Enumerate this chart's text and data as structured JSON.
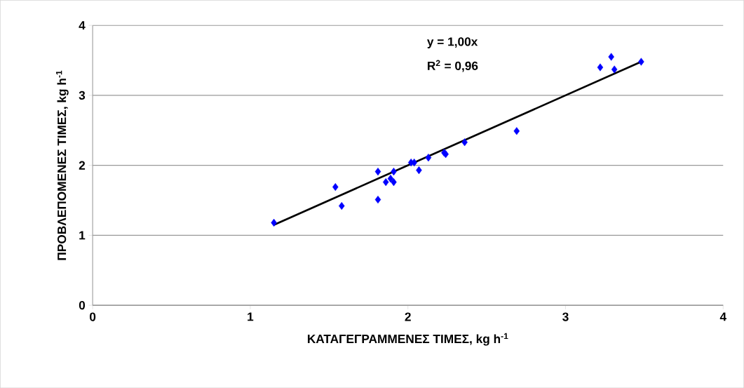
{
  "chart_data": {
    "type": "scatter",
    "xlabel": "ΚΑΤΑΓΕΓΡΑΜΜΕΝΕΣ ΤΙΜΕΣ, kg h$^{-1}$",
    "ylabel": "ΠΡΟΒΛΕΠΟΜΕΝΕΣ ΤΙΜΕΣ, kg h$^{-1}$",
    "annotations": [
      "y = 1,00x",
      "R$^{2}$ = 0,96"
    ],
    "xlim": [
      0,
      4
    ],
    "ylim": [
      0,
      4
    ],
    "xticks": [
      0,
      1,
      2,
      3,
      4
    ],
    "yticks": [
      0,
      1,
      2,
      3,
      4
    ],
    "grid": "y",
    "marker": "diamond",
    "series": [
      {
        "color": "#0000ff",
        "x": [
          1.15,
          1.54,
          1.58,
          1.81,
          1.81,
          1.86,
          1.89,
          1.91,
          1.91,
          2.02,
          2.04,
          2.07,
          2.13,
          2.23,
          2.24,
          2.36,
          2.69,
          3.22,
          3.29,
          3.31,
          3.48
        ],
        "values": [
          1.18,
          1.69,
          1.42,
          1.91,
          1.51,
          1.76,
          1.81,
          1.91,
          1.76,
          2.04,
          2.04,
          1.93,
          2.11,
          2.18,
          2.16,
          2.33,
          2.49,
          3.4,
          3.55,
          3.37,
          3.48
        ]
      },
      {
        "type": "line",
        "color": "#000000",
        "marker": "none",
        "x": [
          1.15,
          3.48
        ],
        "values": [
          1.15,
          3.48
        ]
      }
    ]
  }
}
